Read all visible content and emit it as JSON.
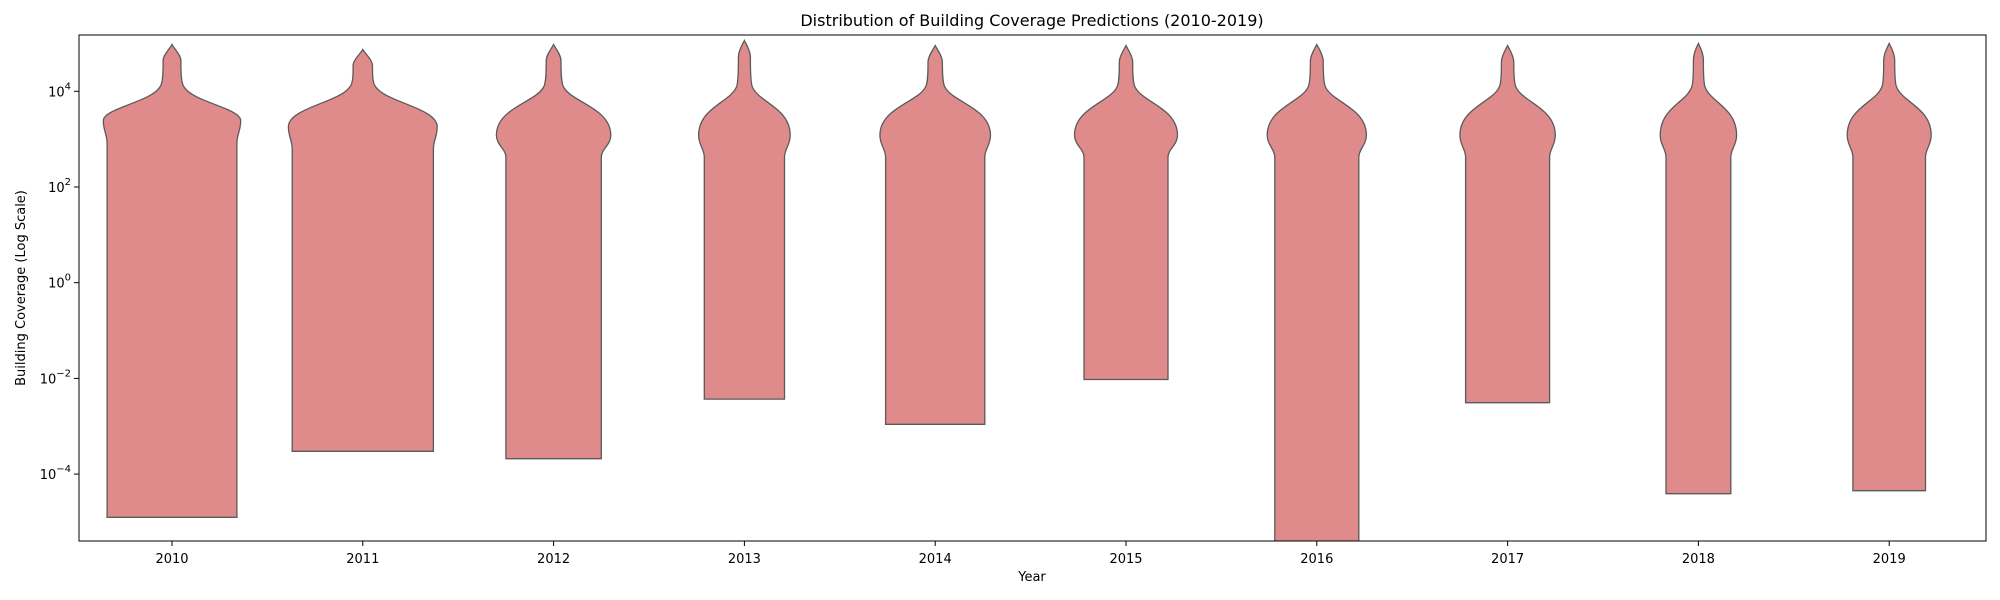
{
  "chart_data": {
    "type": "violin",
    "title": "Distribution of Building Coverage Predictions (2010-2019)",
    "xlabel": "Year",
    "ylabel": "Building Coverage (Log Scale)",
    "y_scale": "log",
    "ylim": [
      4e-06,
      150000
    ],
    "y_ticks": [
      {
        "value": 0.0001,
        "label_base": "10",
        "label_exp": "−4"
      },
      {
        "value": 0.01,
        "label_base": "10",
        "label_exp": "−2"
      },
      {
        "value": 1,
        "label_base": "10",
        "label_exp": "0"
      },
      {
        "value": 100,
        "label_base": "10",
        "label_exp": "2"
      },
      {
        "value": 10000,
        "label_base": "10",
        "label_exp": "4"
      }
    ],
    "categories": [
      "2010",
      "2011",
      "2012",
      "2013",
      "2014",
      "2015",
      "2016",
      "2017",
      "2018",
      "2019"
    ],
    "fill_color": "#e08b8b",
    "edge_color": "#5a5a5a",
    "violins": [
      {
        "year": "2010",
        "min": 1.25e-05,
        "max": 95000,
        "base_top": 2000,
        "bulge": 4000,
        "max_halfwidth": 0.36,
        "bottom_halfwidth": 0.34
      },
      {
        "year": "2011",
        "min": 0.0003,
        "max": 75000,
        "base_top": 1500,
        "bulge": 4000,
        "max_halfwidth": 0.39,
        "bottom_halfwidth": 0.37
      },
      {
        "year": "2012",
        "min": 0.00021,
        "max": 95000,
        "base_top": 1000,
        "bulge": 4000,
        "max_halfwidth": 0.3,
        "bottom_halfwidth": 0.25
      },
      {
        "year": "2013",
        "min": 0.0037,
        "max": 115000,
        "base_top": 1000,
        "bulge": 4000,
        "max_halfwidth": 0.24,
        "bottom_halfwidth": 0.21
      },
      {
        "year": "2014",
        "min": 0.0011,
        "max": 90000,
        "base_top": 1000,
        "bulge": 4000,
        "max_halfwidth": 0.29,
        "bottom_halfwidth": 0.26
      },
      {
        "year": "2015",
        "min": 0.0095,
        "max": 90000,
        "base_top": 1000,
        "bulge": 4000,
        "max_halfwidth": 0.27,
        "bottom_halfwidth": 0.22
      },
      {
        "year": "2016",
        "min": 3e-06,
        "max": 95000,
        "base_top": 1000,
        "bulge": 4000,
        "max_halfwidth": 0.26,
        "bottom_halfwidth": 0.22
      },
      {
        "year": "2017",
        "min": 0.0031,
        "max": 90000,
        "base_top": 1000,
        "bulge": 4000,
        "max_halfwidth": 0.25,
        "bottom_halfwidth": 0.22
      },
      {
        "year": "2018",
        "min": 3.9e-05,
        "max": 100000,
        "base_top": 1000,
        "bulge": 4000,
        "max_halfwidth": 0.2,
        "bottom_halfwidth": 0.17
      },
      {
        "year": "2019",
        "min": 4.5e-05,
        "max": 100000,
        "base_top": 1000,
        "bulge": 4000,
        "max_halfwidth": 0.22,
        "bottom_halfwidth": 0.19
      }
    ]
  }
}
